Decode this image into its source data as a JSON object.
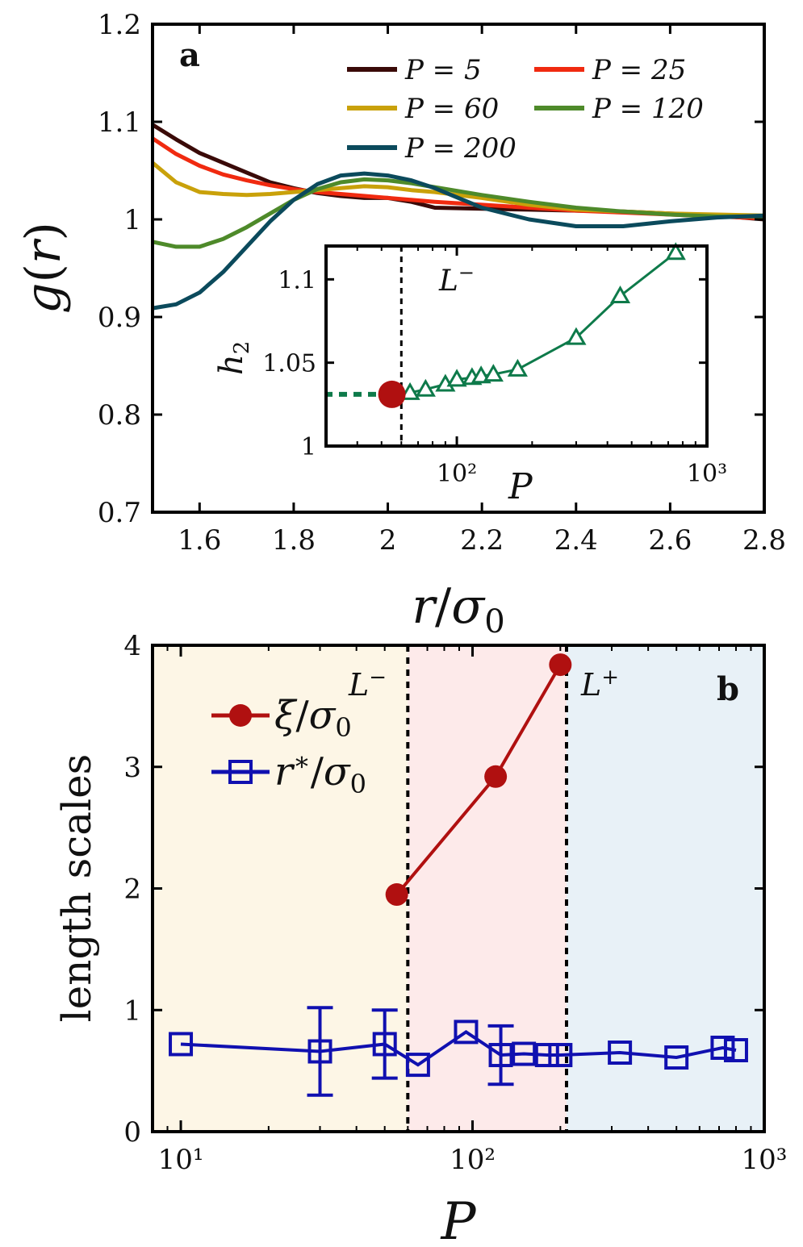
{
  "chart_data": [
    {
      "type": "line",
      "panel_label": "a",
      "xlabel": "r/σ0",
      "ylabel": "g(r)",
      "xlim": [
        1.5,
        2.8
      ],
      "ylim": [
        0.7,
        1.2
      ],
      "x_ticks": [
        "1.6",
        "1.8",
        "2",
        "2.2",
        "2.4",
        "2.6",
        "2.8"
      ],
      "y_ticks": [
        "0.7",
        "0.8",
        "0.9",
        "1",
        "1.1",
        "1.2"
      ],
      "legend_position": "top-right",
      "series": [
        {
          "name": "P = 5",
          "color": "#3a0a08",
          "x": [
            1.5,
            1.55,
            1.6,
            1.65,
            1.7,
            1.75,
            1.8,
            1.85,
            1.9,
            1.95,
            2.0,
            2.05,
            2.1,
            2.2,
            2.3,
            2.4,
            2.5,
            2.6,
            2.7,
            2.8
          ],
          "y": [
            1.097,
            1.082,
            1.068,
            1.058,
            1.048,
            1.038,
            1.032,
            1.027,
            1.024,
            1.022,
            1.022,
            1.018,
            1.012,
            1.011,
            1.01,
            1.009,
            1.008,
            1.006,
            1.004,
            1.0
          ]
        },
        {
          "name": "P = 25",
          "color": "#f02a10",
          "x": [
            1.5,
            1.55,
            1.6,
            1.65,
            1.7,
            1.75,
            1.8,
            1.85,
            1.9,
            2.0,
            2.1,
            2.2,
            2.3,
            2.4,
            2.5,
            2.6,
            2.7,
            2.8
          ],
          "y": [
            1.083,
            1.067,
            1.055,
            1.046,
            1.04,
            1.035,
            1.031,
            1.028,
            1.026,
            1.022,
            1.018,
            1.015,
            1.012,
            1.009,
            1.007,
            1.005,
            1.003,
            1.001
          ]
        },
        {
          "name": "P = 60",
          "color": "#c9a10a",
          "x": [
            1.5,
            1.55,
            1.6,
            1.65,
            1.7,
            1.75,
            1.8,
            1.85,
            1.9,
            1.95,
            2.0,
            2.05,
            2.1,
            2.2,
            2.3,
            2.4,
            2.5,
            2.6,
            2.7,
            2.8
          ],
          "y": [
            1.058,
            1.038,
            1.028,
            1.026,
            1.025,
            1.026,
            1.028,
            1.03,
            1.032,
            1.034,
            1.033,
            1.03,
            1.028,
            1.022,
            1.015,
            1.01,
            1.008,
            1.006,
            1.005,
            1.004
          ]
        },
        {
          "name": "P = 120",
          "color": "#4e8a2a",
          "x": [
            1.5,
            1.55,
            1.6,
            1.65,
            1.7,
            1.75,
            1.8,
            1.85,
            1.9,
            1.95,
            2.0,
            2.05,
            2.1,
            2.2,
            2.3,
            2.4,
            2.5,
            2.6,
            2.7,
            2.8
          ],
          "y": [
            0.977,
            0.972,
            0.972,
            0.98,
            0.992,
            1.006,
            1.02,
            1.031,
            1.038,
            1.041,
            1.04,
            1.037,
            1.033,
            1.025,
            1.018,
            1.012,
            1.008,
            1.005,
            1.003,
            1.003
          ]
        },
        {
          "name": "P = 200",
          "color": "#0b4a5c",
          "x": [
            1.5,
            1.55,
            1.6,
            1.65,
            1.7,
            1.75,
            1.8,
            1.85,
            1.9,
            1.95,
            2.0,
            2.05,
            2.1,
            2.15,
            2.2,
            2.3,
            2.4,
            2.5,
            2.6,
            2.7,
            2.8
          ],
          "y": [
            0.909,
            0.913,
            0.925,
            0.946,
            0.972,
            0.998,
            1.02,
            1.036,
            1.045,
            1.047,
            1.045,
            1.04,
            1.032,
            1.022,
            1.012,
            1.0,
            0.993,
            0.993,
            0.998,
            1.002,
            1.004
          ]
        }
      ],
      "inset": {
        "type": "scatter",
        "xlabel": "P",
        "ylabel": "h2",
        "xscale": "log",
        "xlim": [
          30,
          1000
        ],
        "ylim": [
          1,
          1.12
        ],
        "x_ticks": [
          "10²",
          "10³"
        ],
        "y_ticks": [
          "1",
          "1.05",
          "1.1"
        ],
        "vline_label": "L⁻",
        "vline_x": 60,
        "color": "#0e7a4a",
        "marker_color": "#b01010",
        "triangles": {
          "x": [
            65,
            75,
            90,
            100,
            115,
            125,
            140,
            175,
            300,
            450,
            750
          ],
          "y": [
            1.032,
            1.034,
            1.037,
            1.04,
            1.041,
            1.042,
            1.043,
            1.046,
            1.065,
            1.09,
            1.116
          ]
        },
        "marker": {
          "x": 55,
          "y": 1.031
        },
        "dashed_extension": {
          "x": [
            30,
            55
          ],
          "y": [
            1.031,
            1.031
          ]
        }
      }
    },
    {
      "type": "line",
      "panel_label": "b",
      "xlabel": "P",
      "ylabel": "length scales",
      "xscale": "log",
      "xlim": [
        8,
        1000
      ],
      "ylim": [
        0,
        4
      ],
      "x_ticks": [
        "10¹",
        "10²",
        "10³"
      ],
      "y_ticks": [
        "0",
        "1",
        "2",
        "3",
        "4"
      ],
      "legend_position": "top-left",
      "vlines": [
        {
          "x": 60,
          "label": "L⁻"
        },
        {
          "x": 210,
          "label": "L⁺"
        }
      ],
      "regions": [
        {
          "from": 8,
          "to": 60,
          "color": "#fdf6e6"
        },
        {
          "from": 60,
          "to": 210,
          "color": "#fdeaea"
        },
        {
          "from": 210,
          "to": 1000,
          "color": "#e8f1f7"
        }
      ],
      "series": [
        {
          "name": "ξ/σ0",
          "color": "#b01010",
          "marker": "circle",
          "x": [
            55,
            120,
            200
          ],
          "y": [
            1.95,
            2.92,
            3.84
          ]
        },
        {
          "name": "r*/σ0",
          "color": "#1010b0",
          "marker": "square",
          "x": [
            10,
            30,
            50,
            65,
            95,
            125,
            150,
            180,
            200,
            320,
            500,
            720,
            800
          ],
          "y": [
            0.72,
            0.66,
            0.72,
            0.55,
            0.82,
            0.63,
            0.64,
            0.63,
            0.63,
            0.65,
            0.61,
            0.69,
            0.67
          ],
          "err": [
            0,
            0.36,
            0.28,
            0,
            0,
            0.24,
            0,
            0,
            0,
            0,
            0,
            0,
            0
          ]
        }
      ]
    }
  ]
}
